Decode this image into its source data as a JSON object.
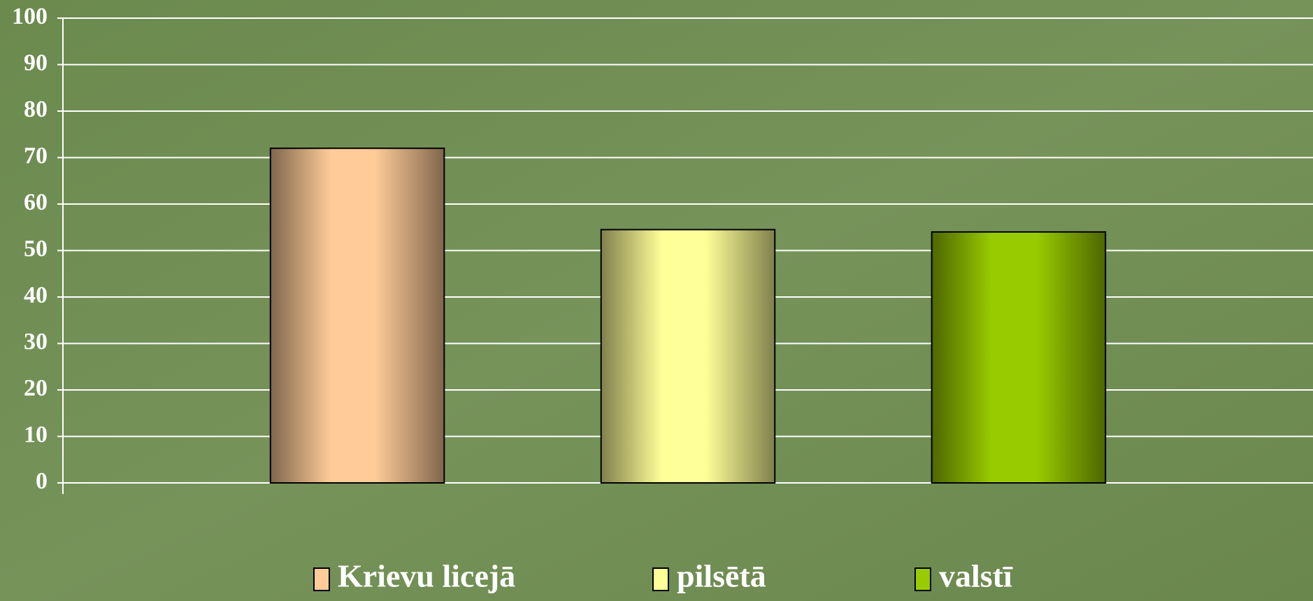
{
  "chart_data": {
    "type": "bar",
    "categories": [
      null
    ],
    "series": [
      {
        "name": "Krievu licejā",
        "color": "#ffcc99",
        "values": [
          72
        ]
      },
      {
        "name": "pilsētā",
        "color": "#ffff99",
        "values": [
          54.5
        ]
      },
      {
        "name": "valstī",
        "color": "#99cc00",
        "values": [
          54
        ]
      }
    ],
    "ylim": [
      0,
      100
    ],
    "yticks": [
      0,
      10,
      20,
      30,
      40,
      50,
      60,
      70,
      80,
      90,
      100
    ],
    "grid": true,
    "legend": "bottom"
  }
}
